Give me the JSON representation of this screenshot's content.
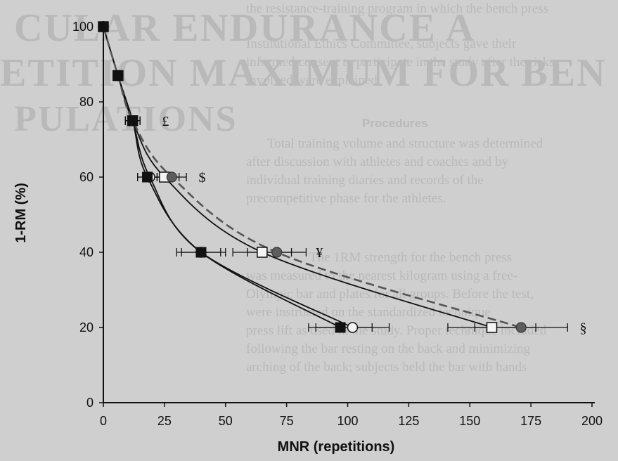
{
  "chart_data": {
    "type": "scatter",
    "xlabel": "MNR (repetitions)",
    "ylabel": "1-RM (%)",
    "xlim": [
      0,
      200
    ],
    "ylim": [
      0,
      100
    ],
    "xticks": [
      0,
      25,
      50,
      75,
      100,
      125,
      150,
      175,
      200
    ],
    "yticks": [
      0,
      20,
      40,
      60,
      80,
      100
    ],
    "series": [
      {
        "marker": "filled-square",
        "line": "solid",
        "color": "#111111",
        "points": [
          {
            "x": 0,
            "y": 100
          },
          {
            "x": 6,
            "y": 87
          },
          {
            "x": 12,
            "y": 75
          },
          {
            "x": 18,
            "y": 60
          },
          {
            "x": 40,
            "y": 40
          },
          {
            "x": 97,
            "y": 20
          }
        ],
        "xerr": [
          0,
          1,
          3,
          4,
          8,
          13
        ]
      },
      {
        "marker": "open-circle",
        "line": "solid",
        "color": "#111111",
        "points": [
          {
            "x": 0,
            "y": 100
          },
          {
            "x": 6,
            "y": 87
          },
          {
            "x": 12,
            "y": 75
          },
          {
            "x": 19,
            "y": 60
          },
          {
            "x": 40,
            "y": 40
          },
          {
            "x": 102,
            "y": 20
          }
        ],
        "xerr": [
          0,
          1,
          3,
          5,
          10,
          15
        ]
      },
      {
        "marker": "open-square",
        "line": "solid",
        "color": "#111111",
        "points": [
          {
            "x": 0,
            "y": 100
          },
          {
            "x": 6,
            "y": 87
          },
          {
            "x": 12,
            "y": 75
          },
          {
            "x": 25,
            "y": 60
          },
          {
            "x": 65,
            "y": 40
          },
          {
            "x": 159,
            "y": 20
          }
        ],
        "xerr": [
          0,
          1,
          3,
          6,
          12,
          18
        ]
      },
      {
        "marker": "filled-circle",
        "line": "dashed",
        "color": "#555555",
        "points": [
          {
            "x": 0,
            "y": 100
          },
          {
            "x": 6,
            "y": 87
          },
          {
            "x": 12,
            "y": 75
          },
          {
            "x": 28,
            "y": 60
          },
          {
            "x": 71,
            "y": 40
          },
          {
            "x": 171,
            "y": 20
          }
        ],
        "xerr": [
          0,
          1,
          3,
          6,
          12,
          19
        ]
      }
    ],
    "annotations": [
      {
        "text": "£",
        "x": 24,
        "y": 75
      },
      {
        "text": "$",
        "x": 39,
        "y": 60
      },
      {
        "text": "¥",
        "x": 87,
        "y": 40
      },
      {
        "text": "§",
        "x": 195,
        "y": 20
      }
    ]
  },
  "background": {
    "lines": [
      "CULAR ENDURANCE A",
      "ETITION MAXIMUM FOR BEN",
      "PULATIONS",
      "the resistance-training program in which the bench press",
      "Institutional Ethics Committee, subjects gave their",
      "informed consent to participate in the study after the risks",
      "involved were explained.",
      "Procedures",
      "Total training volume and structure was determined",
      "after discussion with athletes and coaches and by",
      "individual training diaries and records of the",
      "precompetitive phase for the athletes.",
      "The 1RM strength for the bench press",
      "was measured to the nearest kilogram using a free-",
      "Olympic bar and plates for all groups. Before the test,",
      "were instructed on the standardized technique",
      "press lift as used in the study. Proper technique included",
      "following the bar resting on the back and minimizing",
      "arching of the back; subjects held the bar with hands"
    ]
  }
}
